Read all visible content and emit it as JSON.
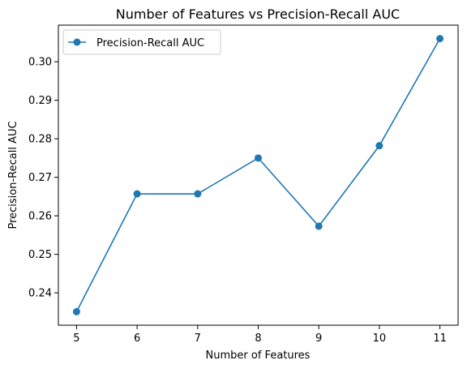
{
  "chart_data": {
    "type": "line",
    "title": "Number of Features vs Precision-Recall AUC",
    "xlabel": "Number of Features",
    "ylabel": "Precision-Recall AUC",
    "x": [
      5,
      6,
      7,
      8,
      9,
      10,
      11
    ],
    "series": [
      {
        "name": "Precision-Recall AUC",
        "values": [
          0.2351,
          0.2657,
          0.2657,
          0.275,
          0.2573,
          0.2782,
          0.306
        ],
        "color": "#1f77b4",
        "marker": "circle"
      }
    ],
    "xticks": [
      "5",
      "6",
      "7",
      "8",
      "9",
      "10",
      "11"
    ],
    "yticks": [
      "0.24",
      "0.25",
      "0.26",
      "0.27",
      "0.28",
      "0.29",
      "0.30"
    ],
    "ytick_values": [
      0.24,
      0.25,
      0.26,
      0.27,
      0.28,
      0.29,
      0.3
    ],
    "xlim": [
      4.7,
      11.3
    ],
    "ylim": [
      0.2316,
      0.3095
    ],
    "grid": false,
    "legend_position": "upper-left"
  }
}
